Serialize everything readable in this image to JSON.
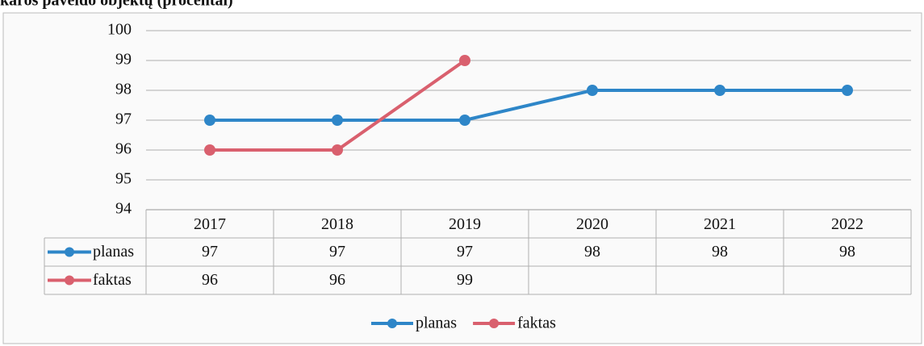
{
  "chart_data": {
    "type": "line",
    "title": "karos paveldo objektų (procentai)",
    "categories": [
      "2017",
      "2018",
      "2019",
      "2020",
      "2021",
      "2022"
    ],
    "series": [
      {
        "name": "planas",
        "color": "#2e86c8",
        "values": [
          97,
          97,
          97,
          98,
          98,
          98
        ]
      },
      {
        "name": "faktas",
        "color": "#d9606e",
        "values": [
          96,
          96,
          99,
          null,
          null,
          null
        ]
      }
    ],
    "ylim": [
      94,
      100
    ],
    "yticks": [
      94,
      95,
      96,
      97,
      98,
      99,
      100
    ],
    "grid": true,
    "legend": "bottom"
  }
}
